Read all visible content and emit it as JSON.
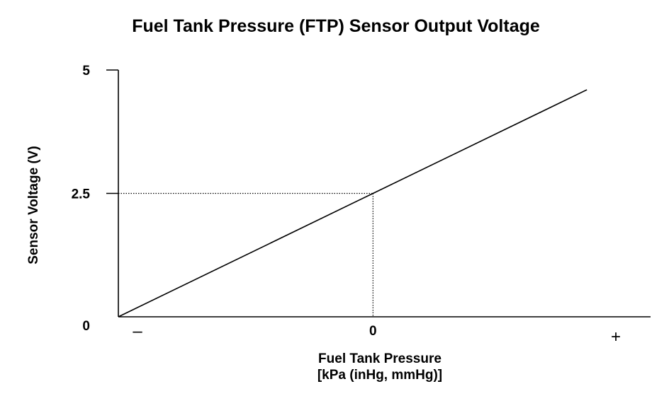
{
  "chart_data": {
    "type": "line",
    "title": "Fuel Tank Pressure (FTP) Sensor Output Voltage",
    "xlabel": "Fuel Tank Pressure",
    "xlabel_units": "[kPa (inHg, mmHg)]",
    "ylabel": "Sensor Voltage (V)",
    "x_tick_labels": [
      "–",
      "0",
      "+"
    ],
    "y_tick_labels": [
      "0",
      "2.5",
      "5"
    ],
    "ylim": [
      0,
      5
    ],
    "xlim": [
      -1,
      1.09
    ],
    "grid": false,
    "series": [
      {
        "x": [
          -1,
          0,
          0.84
        ],
        "y": [
          0,
          2.5,
          4.6
        ]
      }
    ],
    "reference_lines": [
      {
        "axis": "y",
        "value": 2.5,
        "style": "dotted"
      },
      {
        "axis": "x",
        "value": 0,
        "style": "dotted"
      }
    ],
    "colors": {
      "line": "#000000",
      "axis": "#000000",
      "background": "#ffffff"
    }
  }
}
